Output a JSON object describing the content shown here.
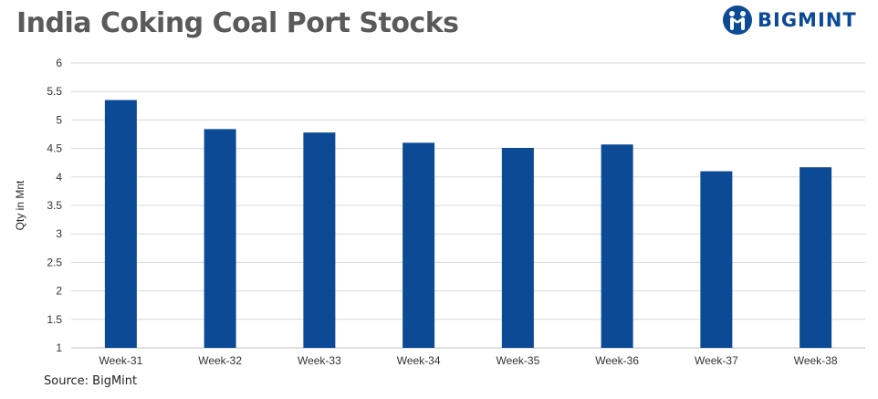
{
  "brand": {
    "name": "BIGMINT",
    "color": "#0d4a96",
    "icon": "people-logo-icon"
  },
  "source": "Source: BigMint",
  "chart_data": {
    "type": "bar",
    "title": "India Coking Coal Port Stocks",
    "xlabel": "",
    "ylabel": "Qty in Mnt",
    "categories": [
      "Week-31",
      "Week-32",
      "Week-33",
      "Week-34",
      "Week-35",
      "Week-36",
      "Week-37",
      "Week-38"
    ],
    "values": [
      5.35,
      4.84,
      4.78,
      4.6,
      4.51,
      4.57,
      4.1,
      4.17
    ],
    "ylim": [
      1,
      6
    ],
    "yticks": [
      1,
      1.5,
      2,
      2.5,
      3,
      3.5,
      4,
      4.5,
      5,
      5.5,
      6
    ],
    "ytick_labels": [
      "1",
      "1.5",
      "2",
      "2.5",
      "3",
      "3.5",
      "4",
      "4.5",
      "5",
      "5.5",
      "6"
    ],
    "grid": true,
    "bar_color": "#0d4a96",
    "legend": "none"
  }
}
